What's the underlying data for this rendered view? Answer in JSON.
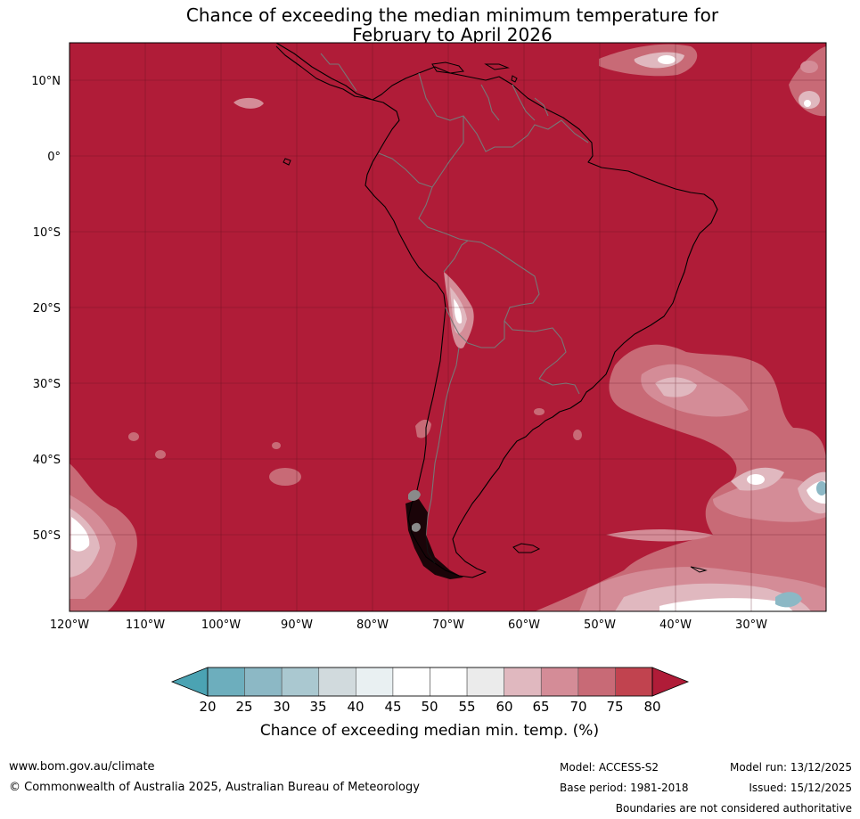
{
  "title": {
    "line1": "Chance of exceeding the median minimum temperature for",
    "line2": "February to April 2026"
  },
  "map": {
    "lat_labels": [
      "10°N",
      "0°",
      "10°S",
      "20°S",
      "30°S",
      "40°S",
      "50°S"
    ],
    "lon_labels": [
      "120°W",
      "110°W",
      "100°W",
      "90°W",
      "80°W",
      "70°W",
      "60°W",
      "50°W",
      "40°W",
      "30°W"
    ],
    "dominant_category": "above 80"
  },
  "colorbar": {
    "ticks": [
      "20",
      "25",
      "30",
      "35",
      "40",
      "45",
      "50",
      "55",
      "60",
      "65",
      "70",
      "75",
      "80"
    ],
    "colors": [
      "#4ba3b3",
      "#6daebd",
      "#8cb8c5",
      "#aac8d0",
      "#d1dadd",
      "#e9f0f2",
      "#ffffff",
      "#ffffff",
      "#ebebeb",
      "#e0b8bf",
      "#d48c97",
      "#c86a76",
      "#c1434f",
      "#b01c38"
    ],
    "label": "Chance of exceeding median min. temp. (%)"
  },
  "footer": {
    "url": "www.bom.gov.au/climate",
    "copyright": "© Commonwealth of Australia 2025, Australian Bureau of Meteorology",
    "model": "Model: ACCESS-S2",
    "base_period": "Base period: 1981-2018",
    "model_run": "Model run: 13/12/2025",
    "issued": "Issued: 15/12/2025",
    "disclaimer": "Boundaries are not considered authoritative"
  }
}
